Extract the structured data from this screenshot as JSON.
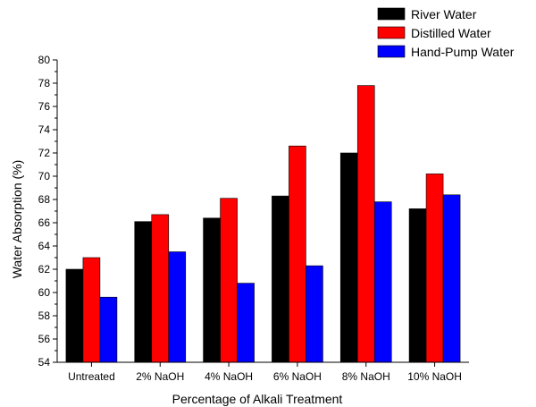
{
  "chart_data": {
    "type": "bar",
    "title": "",
    "xlabel": "Percentage of Alkali Treatment",
    "ylabel": "Water Absorption (%)",
    "ylim": [
      54,
      80
    ],
    "yticks": [
      "54",
      "56",
      "58",
      "60",
      "62",
      "64",
      "66",
      "68",
      "70",
      "72",
      "74",
      "76",
      "78",
      "80"
    ],
    "categories": [
      "Untreated",
      "2% NaOH",
      "4% NaOH",
      "6% NaOH",
      "8% NaOH",
      "10% NaOH"
    ],
    "series": [
      {
        "name": "River Water",
        "color": "#000000",
        "values": [
          62.0,
          66.1,
          66.4,
          68.3,
          72.0,
          67.2
        ]
      },
      {
        "name": "Distilled Water",
        "color": "#ff0000",
        "values": [
          63.0,
          66.7,
          68.1,
          72.6,
          77.8,
          70.2
        ]
      },
      {
        "name": "Hand-Pump Water",
        "color": "#0000ff",
        "values": [
          59.6,
          63.5,
          60.8,
          62.3,
          67.8,
          68.4
        ]
      }
    ],
    "grid": false,
    "legend_position": "top-right"
  }
}
